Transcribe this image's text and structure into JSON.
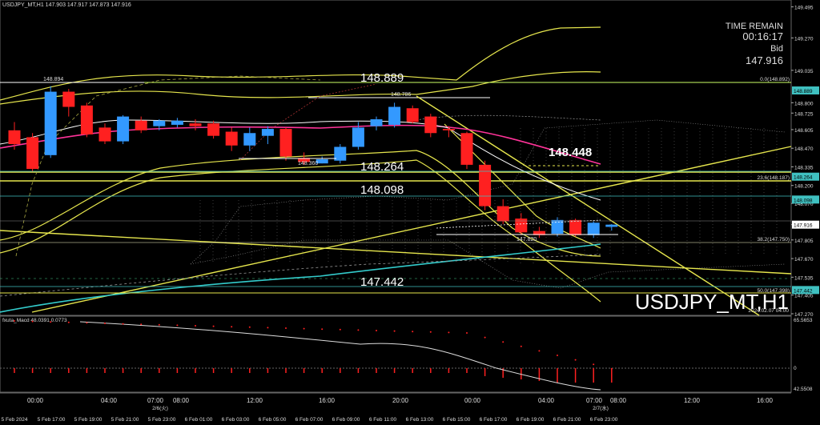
{
  "header": {
    "symbol_line": "USDJPY_MT,H1  147.903 147.917 147.873 147.916"
  },
  "info_panel": {
    "time_remain_label": "TIME REMAIN",
    "time_remain_value": "00:16:17",
    "bid_label": "Bid",
    "bid_value": "147.916"
  },
  "watermark": {
    "title": "USDJPY_MT,H1",
    "datetime": "2024.02.07 04:00"
  },
  "indicator": {
    "label": "fxuta_Macd 48.0391  0.0773",
    "y_top": "65.5653",
    "y_zero": "0",
    "y_bottom": "42.5508"
  },
  "colors": {
    "bull": "#3399ff",
    "bear": "#ff2020",
    "ma_white": "#ffffff",
    "ma_magenta": "#ff3399",
    "band": "#e6e64d",
    "teal": "#33cccc",
    "level": "#ccff66"
  },
  "chart_data": {
    "type": "candlestick",
    "symbol": "USDJPY_MT",
    "timeframe": "H1",
    "ylim": [
      147.27,
      149.51
    ],
    "y_ticks": [
      "149.495",
      "149.270",
      "149.035",
      "148.800",
      "148.725",
      "148.605",
      "148.470",
      "148.335",
      "148.200",
      "148.070",
      "147.916",
      "147.805",
      "147.670",
      "147.535",
      "147.405",
      "147.270"
    ],
    "price_badges": [
      {
        "price": 148.889,
        "text": "148.889",
        "color": "#3fc0c0"
      },
      {
        "price": 148.264,
        "text": "148.264",
        "color": "#3fc0c0"
      },
      {
        "price": 148.098,
        "text": "148.098",
        "color": "#3fc0c0"
      },
      {
        "price": 147.916,
        "text": "147.916",
        "color": "#ffffff"
      },
      {
        "price": 147.442,
        "text": "147.442",
        "color": "#3fc0c0"
      }
    ],
    "fib_labels": [
      {
        "price": 148.892,
        "text": "0.0(148.892)"
      },
      {
        "price": 148.187,
        "text": "23.6(148.187)"
      },
      {
        "price": 147.75,
        "text": "38.2(147.750)"
      },
      {
        "price": 147.398,
        "text": "50.0(147.398)"
      }
    ],
    "levels": [
      {
        "price": 148.889,
        "label": "148.889",
        "style": "normal"
      },
      {
        "price": 148.448,
        "label": "148.448",
        "style": "bold"
      },
      {
        "price": 148.264,
        "label": "148.264",
        "style": "normal"
      },
      {
        "price": 148.098,
        "label": "148.098",
        "style": "normal"
      },
      {
        "price": 147.442,
        "label": "147.442",
        "style": "normal"
      }
    ],
    "marks": [
      {
        "price": 148.894,
        "label": "148.894"
      },
      {
        "price": 148.786,
        "label": "148.786"
      },
      {
        "price": 148.36,
        "label": "148.360"
      },
      {
        "price": 147.82,
        "label": "147.820"
      }
    ],
    "x_time_labels": [
      "00:00",
      "04:00",
      "07:00",
      "08:00",
      "12:00",
      "16:00",
      "20:00",
      "00:00",
      "04:00",
      "07:00",
      "08:00",
      "12:00",
      "16:00"
    ],
    "x_date_labels": [
      "5 Feb 2024",
      "5 Feb 17:00",
      "5 Feb 19:00",
      "5 Feb 21:00",
      "5 Feb 23:00",
      "6 Feb 01:00",
      "6 Feb 03:00",
      "6 Feb 05:00",
      "6 Feb 07:00",
      "6 Feb 09:00",
      "6 Feb 11:00",
      "6 Feb 13:00",
      "6 Feb 15:00",
      "6 Feb 17:00",
      "6 Feb 19:00",
      "6 Feb 21:00",
      "6 Feb 23:00"
    ],
    "x_day_labels": [
      "2/6(火)",
      "2/7(水)"
    ],
    "candles": [
      {
        "o": 148.6,
        "h": 148.66,
        "c": 148.5,
        "l": 148.46
      },
      {
        "o": 148.55,
        "h": 148.58,
        "c": 148.32,
        "l": 148.3
      },
      {
        "o": 148.42,
        "h": 148.92,
        "c": 148.88,
        "l": 148.4
      },
      {
        "o": 148.88,
        "h": 148.9,
        "c": 148.77,
        "l": 148.7
      },
      {
        "o": 148.78,
        "h": 148.8,
        "c": 148.57,
        "l": 148.55
      },
      {
        "o": 148.62,
        "h": 148.65,
        "c": 148.52,
        "l": 148.5
      },
      {
        "o": 148.52,
        "h": 148.71,
        "c": 148.7,
        "l": 148.5
      },
      {
        "o": 148.67,
        "h": 148.7,
        "c": 148.6,
        "l": 148.58
      },
      {
        "o": 148.63,
        "h": 148.68,
        "c": 148.67,
        "l": 148.6
      },
      {
        "o": 148.64,
        "h": 148.69,
        "c": 148.67,
        "l": 148.62
      },
      {
        "o": 148.65,
        "h": 148.68,
        "c": 148.63,
        "l": 148.6
      },
      {
        "o": 148.65,
        "h": 148.67,
        "c": 148.56,
        "l": 148.54
      },
      {
        "o": 148.59,
        "h": 148.62,
        "c": 148.49,
        "l": 148.45
      },
      {
        "o": 148.49,
        "h": 148.62,
        "c": 148.58,
        "l": 148.45
      },
      {
        "o": 148.56,
        "h": 148.63,
        "c": 148.61,
        "l": 148.5
      },
      {
        "o": 148.61,
        "h": 148.62,
        "c": 148.41,
        "l": 148.38
      },
      {
        "o": 148.4,
        "h": 148.44,
        "c": 148.37,
        "l": 148.35
      },
      {
        "o": 148.36,
        "h": 148.41,
        "c": 148.39,
        "l": 148.36
      },
      {
        "o": 148.38,
        "h": 148.5,
        "c": 148.48,
        "l": 148.36
      },
      {
        "o": 148.48,
        "h": 148.66,
        "c": 148.62,
        "l": 148.46
      },
      {
        "o": 148.63,
        "h": 148.7,
        "c": 148.68,
        "l": 148.6
      },
      {
        "o": 148.64,
        "h": 148.8,
        "c": 148.77,
        "l": 148.62
      },
      {
        "o": 148.76,
        "h": 148.78,
        "c": 148.66,
        "l": 148.65
      },
      {
        "o": 148.7,
        "h": 148.72,
        "c": 148.58,
        "l": 148.55
      },
      {
        "o": 148.61,
        "h": 148.63,
        "c": 148.6,
        "l": 148.55
      },
      {
        "o": 148.58,
        "h": 148.59,
        "c": 148.35,
        "l": 148.32
      },
      {
        "o": 148.35,
        "h": 148.38,
        "c": 148.05,
        "l": 148.02
      },
      {
        "o": 148.05,
        "h": 148.1,
        "c": 147.94,
        "l": 147.92
      },
      {
        "o": 147.96,
        "h": 148.0,
        "c": 147.86,
        "l": 147.84
      },
      {
        "o": 147.87,
        "h": 147.9,
        "c": 147.84,
        "l": 147.82
      },
      {
        "o": 147.85,
        "h": 147.97,
        "c": 147.95,
        "l": 147.83
      },
      {
        "o": 147.95,
        "h": 147.96,
        "c": 147.84,
        "l": 147.83
      },
      {
        "o": 147.84,
        "h": 147.94,
        "c": 147.93,
        "l": 147.82
      },
      {
        "o": 147.9,
        "h": 147.92,
        "c": 147.916,
        "l": 147.873
      }
    ]
  }
}
